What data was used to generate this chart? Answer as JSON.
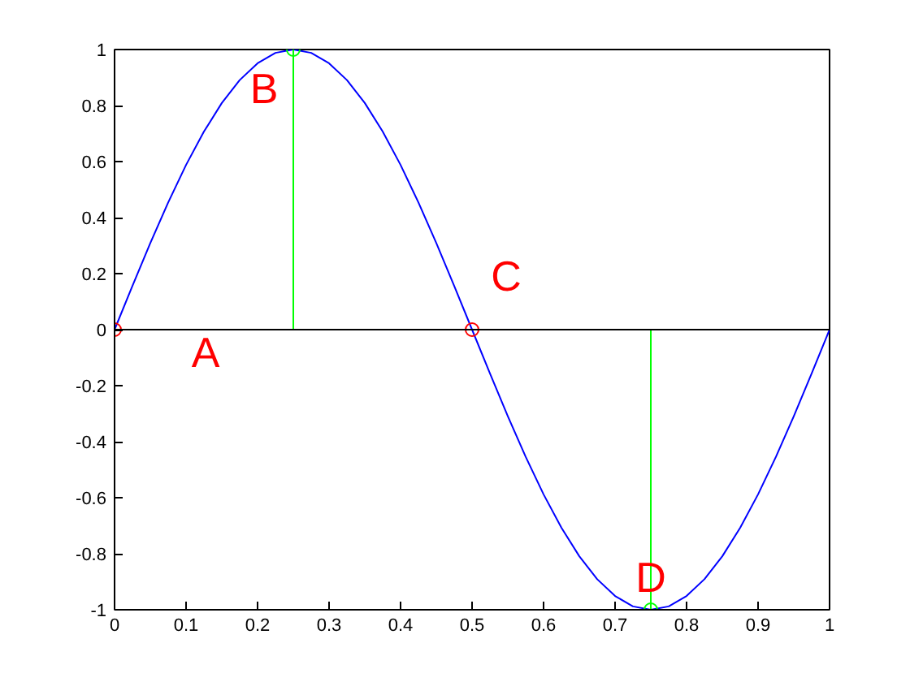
{
  "chart_data": {
    "type": "line",
    "x": [
      0,
      0.025,
      0.05,
      0.075,
      0.1,
      0.125,
      0.15,
      0.175,
      0.2,
      0.225,
      0.25,
      0.275,
      0.3,
      0.325,
      0.35,
      0.375,
      0.4,
      0.425,
      0.45,
      0.475,
      0.5,
      0.525,
      0.55,
      0.575,
      0.6,
      0.625,
      0.65,
      0.675,
      0.7,
      0.725,
      0.75,
      0.775,
      0.8,
      0.825,
      0.85,
      0.875,
      0.9,
      0.925,
      0.95,
      0.975,
      1
    ],
    "series": [
      {
        "color": "#0000ff",
        "values": [
          0,
          0.156,
          0.309,
          0.454,
          0.588,
          0.707,
          0.809,
          0.891,
          0.951,
          0.988,
          1,
          0.988,
          0.951,
          0.891,
          0.809,
          0.707,
          0.588,
          0.454,
          0.309,
          0.156,
          0,
          -0.156,
          -0.309,
          -0.454,
          -0.588,
          -0.707,
          -0.809,
          -0.891,
          -0.951,
          -0.988,
          -1,
          -0.988,
          -0.951,
          -0.891,
          -0.809,
          -0.707,
          -0.588,
          -0.454,
          -0.309,
          -0.156,
          0
        ]
      },
      {
        "type": "lollipop",
        "color": "#00ff00",
        "marker": "circle",
        "x": [
          0.25,
          0.75
        ],
        "values": [
          1,
          -1
        ]
      },
      {
        "type": "scatter",
        "color": "#ff0000",
        "marker": "circle",
        "x": [
          0,
          0.5
        ],
        "values": [
          0,
          0
        ]
      }
    ],
    "ref_lines": [
      {
        "axis": "y",
        "value": 0,
        "color": "#000000"
      }
    ],
    "annotations": [
      {
        "text": "A",
        "x": 0,
        "y": 0
      },
      {
        "text": "B",
        "x": 0.25,
        "y": 1
      },
      {
        "text": "C",
        "x": 0.5,
        "y": 0
      },
      {
        "text": "D",
        "x": 0.75,
        "y": -1
      }
    ],
    "xlim": [
      0,
      1
    ],
    "xticks": [
      0,
      0.1,
      0.2,
      0.3,
      0.4,
      0.5,
      0.6,
      0.7,
      0.8,
      0.9,
      1
    ],
    "ylim": [
      -1,
      1
    ],
    "yticks": [
      -1,
      -0.8,
      -0.6,
      -0.4,
      -0.2,
      0,
      0.2,
      0.4,
      0.6,
      0.8,
      1
    ],
    "grid": false
  }
}
